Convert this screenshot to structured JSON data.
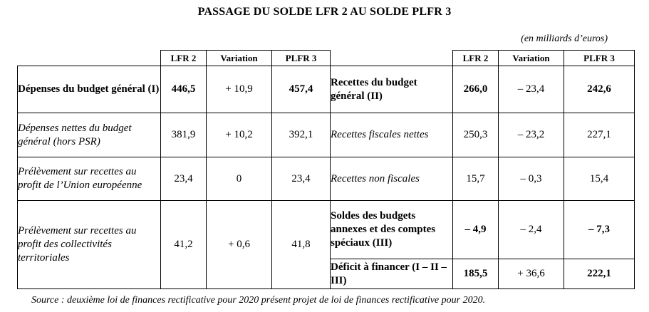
{
  "title": "PASSAGE DU SOLDE LFR 2 AU SOLDE PLFR 3",
  "unit_note": "(en milliards d’euros)",
  "headers": [
    "LFR 2",
    "Variation",
    "PLFR 3"
  ],
  "left_rows": [
    {
      "label": "Dépenses du budget général (I)",
      "lfr2": "446,5",
      "variation": "+ 10,9",
      "plfr3": "457,4"
    },
    {
      "label": "Dépenses nettes du budget général (hors PSR)",
      "lfr2": "381,9",
      "variation": "+ 10,2",
      "plfr3": "392,1"
    },
    {
      "label": "Prélèvement sur recettes au profit de l’Union européenne",
      "lfr2": "23,4",
      "variation": "0",
      "plfr3": "23,4"
    },
    {
      "label": "Prélèvement sur recettes au profit des collectivités territoriales",
      "lfr2": "41,2",
      "variation": "+ 0,6",
      "plfr3": "41,8"
    }
  ],
  "right_rows": [
    {
      "label": "Recettes du budget général (II)",
      "lfr2": "266,0",
      "variation": "– 23,4",
      "plfr3": "242,6"
    },
    {
      "label": "Recettes fiscales nettes",
      "lfr2": "250,3",
      "variation": "– 23,2",
      "plfr3": "227,1"
    },
    {
      "label": "Recettes non fiscales",
      "lfr2": "15,7",
      "variation": "– 0,3",
      "plfr3": "15,4"
    },
    {
      "label": "Soldes des budgets annexes et des comptes spéciaux (III)",
      "lfr2": "– 4,9",
      "variation": "– 2,4",
      "plfr3": "– 7,3"
    },
    {
      "label": "Déficit à financer (I – II – III)",
      "lfr2": "185,5",
      "variation": "+ 36,6",
      "plfr3": "222,1"
    }
  ],
  "source": "Source : deuxième loi de finances rectificative pour 2020 présent projet de loi de finances rectificative pour 2020."
}
